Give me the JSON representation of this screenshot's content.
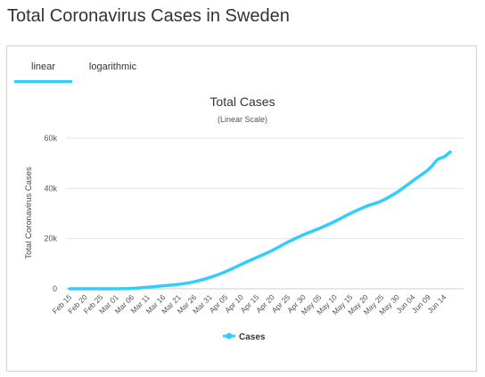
{
  "page": {
    "title": "Total Coronavirus Cases in Sweden"
  },
  "tabs": [
    {
      "label": "linear",
      "active": true
    },
    {
      "label": "logarithmic",
      "active": false
    }
  ],
  "colors": {
    "series": "#33ccff",
    "grid": "#e6e6e6",
    "tab_active": "#33ccff"
  },
  "chart_data": {
    "type": "line",
    "title": "Total Cases",
    "subtitle": "(Linear Scale)",
    "ylabel": "Total Coronavirus Cases",
    "xlabel": "",
    "ylim": [
      0,
      60000
    ],
    "yticks": [
      0,
      20000,
      40000,
      60000
    ],
    "ytick_labels": [
      "0",
      "20k",
      "40k",
      "60k"
    ],
    "xtick_labels": [
      "Feb 15",
      "Feb 20",
      "Feb 25",
      "Mar 01",
      "Mar 06",
      "Mar 11",
      "Mar 16",
      "Mar 21",
      "Mar 26",
      "Mar 31",
      "Apr 05",
      "Apr 10",
      "Apr 15",
      "Apr 20",
      "Apr 25",
      "Apr 30",
      "May 05",
      "May 10",
      "May 15",
      "May 20",
      "May 25",
      "May 30",
      "Jun 04",
      "Jun 09",
      "Jun 14"
    ],
    "grid": true,
    "legend": "bottom-center",
    "series": [
      {
        "name": "Cases",
        "x": [
          "Feb 15",
          "Feb 20",
          "Feb 25",
          "Mar 01",
          "Mar 06",
          "Mar 11",
          "Mar 16",
          "Mar 21",
          "Mar 26",
          "Mar 31",
          "Apr 05",
          "Apr 10",
          "Apr 15",
          "Apr 20",
          "Apr 25",
          "Apr 30",
          "May 05",
          "May 10",
          "May 15",
          "May 20",
          "May 25",
          "May 30",
          "Jun 04",
          "Jun 09",
          "Jun 12",
          "Jun 14",
          "Jun 16"
        ],
        "values": [
          0,
          1,
          7,
          14,
          137,
          620,
          1190,
          1770,
          2800,
          4500,
          6800,
          9700,
          12500,
          15300,
          18600,
          21500,
          24000,
          26800,
          30000,
          32800,
          35000,
          38500,
          43000,
          47500,
          51500,
          52500,
          54500
        ]
      }
    ]
  }
}
